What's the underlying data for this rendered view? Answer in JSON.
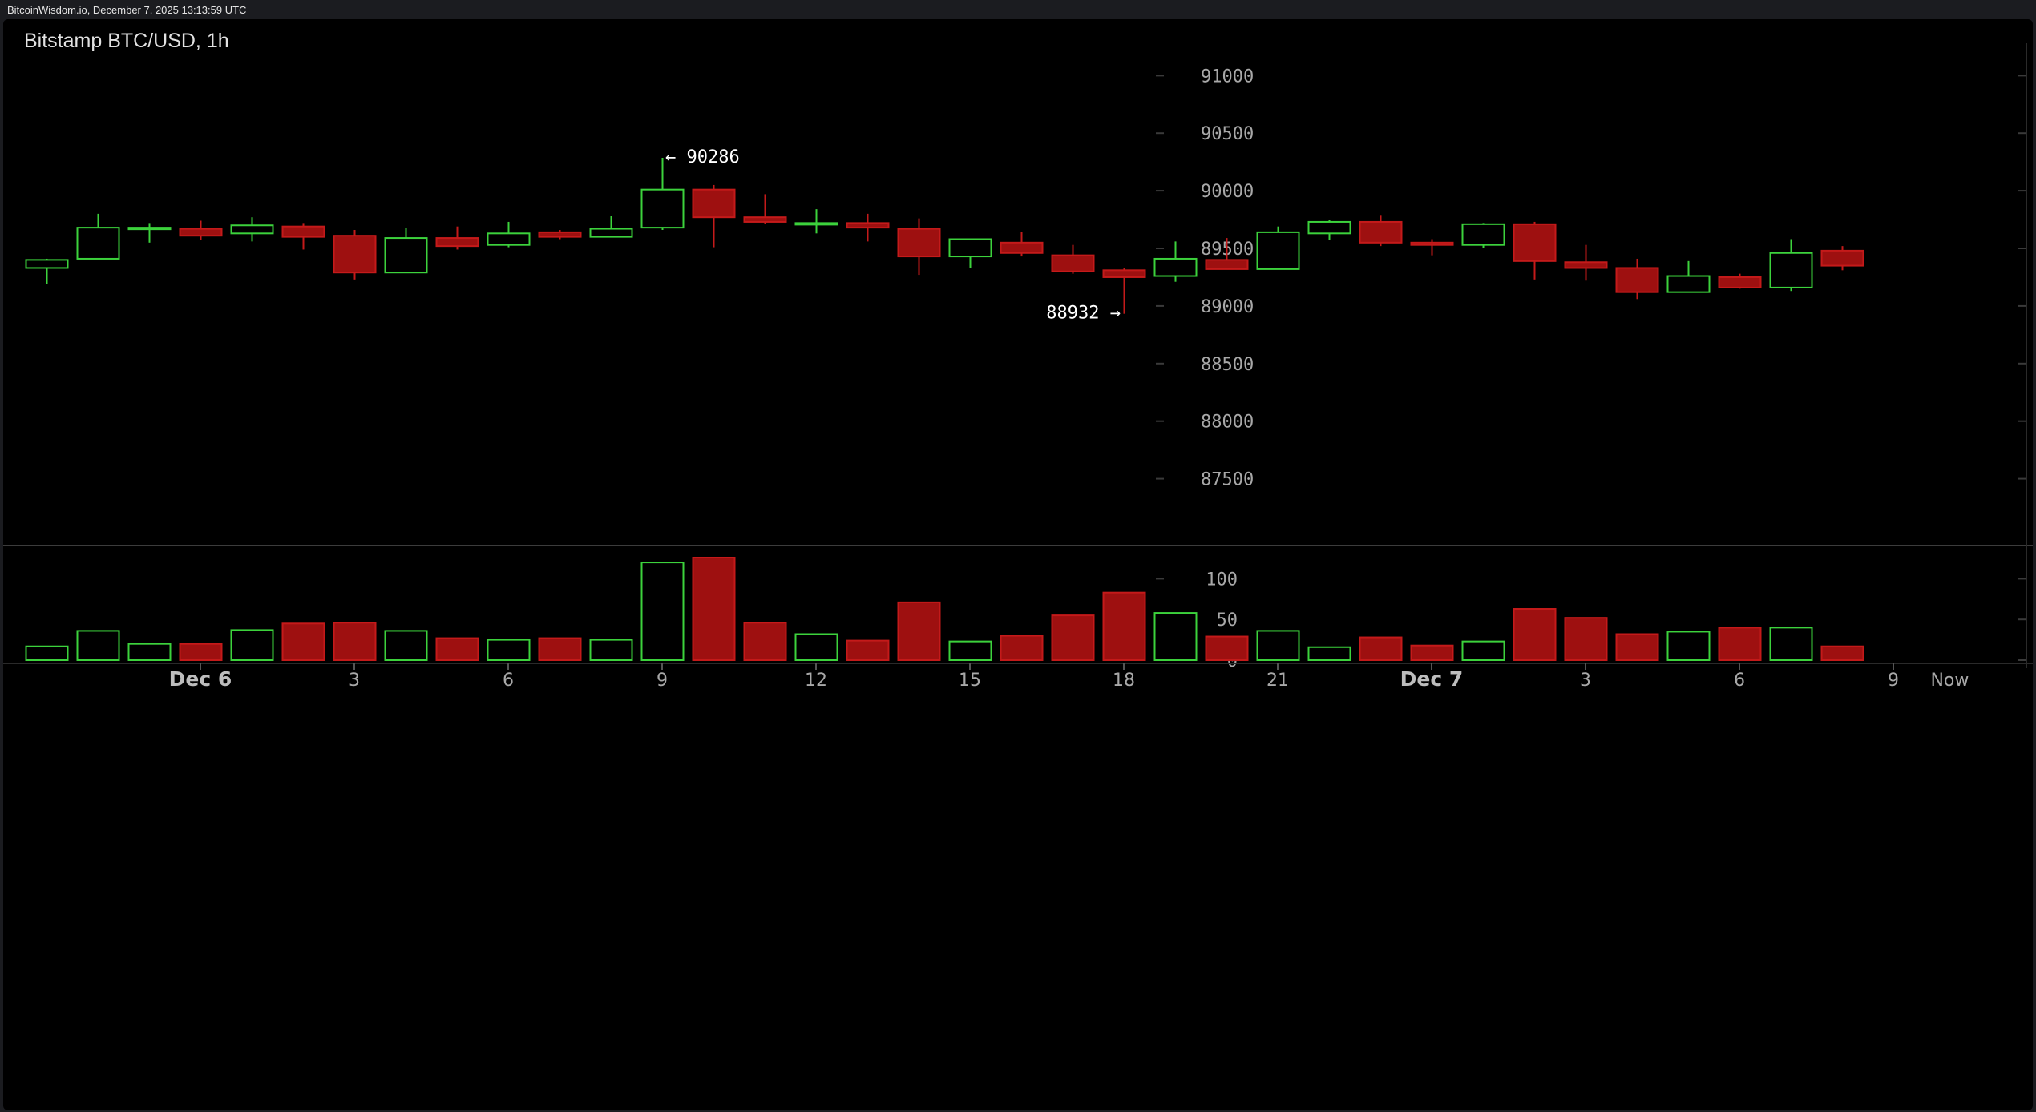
{
  "header": {
    "text": "BitcoinWisdom.io, December 7, 2025 13:13:59 UTC"
  },
  "chart_data": {
    "type": "candlestick",
    "title": "Bitstamp BTC/USD, 1h",
    "price_ticks": [
      "91000",
      "90500",
      "90000",
      "89500",
      "89000",
      "88500",
      "88000",
      "87500"
    ],
    "price_ylim": [
      86920,
      91190
    ],
    "volume_ticks": [
      "100",
      "50",
      "0"
    ],
    "volume_ylim": [
      0,
      126
    ],
    "x_labels": [
      {
        "label": "Dec 6",
        "bar": 3.5,
        "bold": true
      },
      {
        "label": "3",
        "bar": 6.5
      },
      {
        "label": "6",
        "bar": 9.5
      },
      {
        "label": "9",
        "bar": 12.5
      },
      {
        "label": "12",
        "bar": 15.5
      },
      {
        "label": "15",
        "bar": 18.5
      },
      {
        "label": "18",
        "bar": 21.5
      },
      {
        "label": "21",
        "bar": 24.5
      },
      {
        "label": "Dec 7",
        "bar": 27.5,
        "bold": true
      },
      {
        "label": "3",
        "bar": 30.5
      },
      {
        "label": "6",
        "bar": 33.5
      },
      {
        "label": "9",
        "bar": 36.5
      },
      {
        "label": "Now",
        "bar": 37.6
      }
    ],
    "annotations": [
      {
        "text": "← 90286",
        "bar": 12,
        "price": 90286,
        "side": "right"
      },
      {
        "text": "88932 →",
        "bar": 21,
        "price": 88932,
        "side": "left"
      }
    ],
    "candles": [
      {
        "o": 89330,
        "h": 89410,
        "l": 89190,
        "c": 89400,
        "v": 17
      },
      {
        "o": 89410,
        "h": 89800,
        "l": 89410,
        "c": 89680,
        "v": 36
      },
      {
        "o": 89680,
        "h": 89720,
        "l": 89550,
        "c": 89680,
        "v": 20
      },
      {
        "o": 89670,
        "h": 89740,
        "l": 89570,
        "c": 89610,
        "v": 20
      },
      {
        "o": 89630,
        "h": 89770,
        "l": 89560,
        "c": 89700,
        "v": 37
      },
      {
        "o": 89690,
        "h": 89720,
        "l": 89490,
        "c": 89600,
        "v": 45
      },
      {
        "o": 89610,
        "h": 89660,
        "l": 89230,
        "c": 89290,
        "v": 46
      },
      {
        "o": 89290,
        "h": 89680,
        "l": 89290,
        "c": 89590,
        "v": 36
      },
      {
        "o": 89590,
        "h": 89690,
        "l": 89490,
        "c": 89520,
        "v": 27
      },
      {
        "o": 89530,
        "h": 89730,
        "l": 89510,
        "c": 89630,
        "v": 25
      },
      {
        "o": 89640,
        "h": 89660,
        "l": 89580,
        "c": 89600,
        "v": 27
      },
      {
        "o": 89600,
        "h": 89780,
        "l": 89600,
        "c": 89670,
        "v": 25
      },
      {
        "o": 89680,
        "h": 90286,
        "l": 89660,
        "c": 90010,
        "v": 120
      },
      {
        "o": 90010,
        "h": 90050,
        "l": 89510,
        "c": 89770,
        "v": 126
      },
      {
        "o": 89770,
        "h": 89970,
        "l": 89710,
        "c": 89730,
        "v": 46
      },
      {
        "o": 89720,
        "h": 89840,
        "l": 89630,
        "c": 89720,
        "v": 32
      },
      {
        "o": 89720,
        "h": 89800,
        "l": 89560,
        "c": 89680,
        "v": 24
      },
      {
        "o": 89670,
        "h": 89760,
        "l": 89270,
        "c": 89430,
        "v": 71
      },
      {
        "o": 89430,
        "h": 89580,
        "l": 89330,
        "c": 89580,
        "v": 23
      },
      {
        "o": 89550,
        "h": 89640,
        "l": 89430,
        "c": 89460,
        "v": 30
      },
      {
        "o": 89440,
        "h": 89530,
        "l": 89280,
        "c": 89300,
        "v": 55
      },
      {
        "o": 89310,
        "h": 89330,
        "l": 88932,
        "c": 89250,
        "v": 83
      },
      {
        "o": 89260,
        "h": 89560,
        "l": 89210,
        "c": 89410,
        "v": 58
      },
      {
        "o": 89400,
        "h": 89590,
        "l": 89320,
        "c": 89320,
        "v": 29
      },
      {
        "o": 89320,
        "h": 89690,
        "l": 89320,
        "c": 89640,
        "v": 36
      },
      {
        "o": 89630,
        "h": 89750,
        "l": 89570,
        "c": 89730,
        "v": 16
      },
      {
        "o": 89730,
        "h": 89790,
        "l": 89520,
        "c": 89550,
        "v": 28
      },
      {
        "o": 89550,
        "h": 89580,
        "l": 89440,
        "c": 89530,
        "v": 18
      },
      {
        "o": 89530,
        "h": 89720,
        "l": 89500,
        "c": 89710,
        "v": 23
      },
      {
        "o": 89710,
        "h": 89730,
        "l": 89230,
        "c": 89390,
        "v": 63
      },
      {
        "o": 89380,
        "h": 89530,
        "l": 89220,
        "c": 89330,
        "v": 52
      },
      {
        "o": 89330,
        "h": 89410,
        "l": 89060,
        "c": 89120,
        "v": 32
      },
      {
        "o": 89120,
        "h": 89390,
        "l": 89120,
        "c": 89260,
        "v": 35
      },
      {
        "o": 89250,
        "h": 89280,
        "l": 89150,
        "c": 89160,
        "v": 40
      },
      {
        "o": 89160,
        "h": 89580,
        "l": 89130,
        "c": 89460,
        "v": 40
      },
      {
        "o": 89480,
        "h": 89520,
        "l": 89310,
        "c": 89350,
        "v": 17
      }
    ],
    "colors": {
      "up": "#3cd23c",
      "down": "#9e1010",
      "down_border": "#c41a1a",
      "grid_tick": "#3a3a3a",
      "separator": "#3c3c3c",
      "axis_text": "#a8a8a8"
    }
  }
}
